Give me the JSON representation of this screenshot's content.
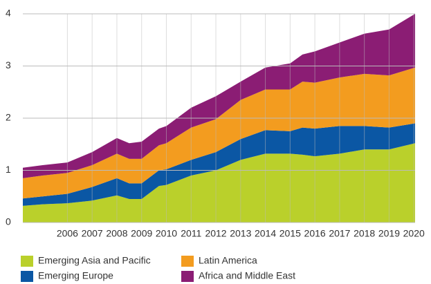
{
  "chart_data": {
    "type": "stacked_area",
    "x": [
      2004.2,
      2005,
      2006,
      2007,
      2008,
      2008.5,
      2009,
      2009.7,
      2010,
      2011,
      2012,
      2013,
      2014,
      2015,
      2015.5,
      2016,
      2017,
      2018,
      2019,
      2020.05
    ],
    "series": [
      {
        "name": "Emerging Asia and Pacific",
        "color": "#bad02b",
        "values": [
          0.32,
          0.35,
          0.37,
          0.42,
          0.52,
          0.45,
          0.45,
          0.7,
          0.72,
          0.9,
          1.0,
          1.2,
          1.32,
          1.32,
          1.3,
          1.27,
          1.32,
          1.4,
          1.4,
          1.52
        ]
      },
      {
        "name": "Emerging Europe",
        "color": "#0b57a4",
        "values": [
          0.14,
          0.15,
          0.18,
          0.26,
          0.33,
          0.3,
          0.3,
          0.3,
          0.3,
          0.3,
          0.35,
          0.4,
          0.45,
          0.43,
          0.52,
          0.53,
          0.53,
          0.45,
          0.42,
          0.38
        ]
      },
      {
        "name": "Latin America",
        "color": "#f39c1f",
        "values": [
          0.39,
          0.4,
          0.4,
          0.42,
          0.47,
          0.47,
          0.47,
          0.48,
          0.5,
          0.62,
          0.63,
          0.75,
          0.78,
          0.8,
          0.88,
          0.88,
          0.93,
          1.0,
          1.0,
          1.07
        ]
      },
      {
        "name": "Africa and Middle East",
        "color": "#8b1d74",
        "values": [
          0.2,
          0.2,
          0.2,
          0.25,
          0.3,
          0.3,
          0.33,
          0.32,
          0.33,
          0.38,
          0.44,
          0.35,
          0.42,
          0.5,
          0.52,
          0.6,
          0.67,
          0.77,
          0.88,
          1.03
        ]
      }
    ],
    "xlim": [
      2004.2,
      2020.05
    ],
    "xticks": [
      2006,
      2007,
      2008,
      2009,
      2010,
      2011,
      2012,
      2013,
      2014,
      2015,
      2016,
      2017,
      2018,
      2019,
      2020
    ],
    "ylim": [
      0,
      4
    ],
    "yticks": [
      0,
      1,
      2,
      3,
      4
    ],
    "grid": true
  }
}
